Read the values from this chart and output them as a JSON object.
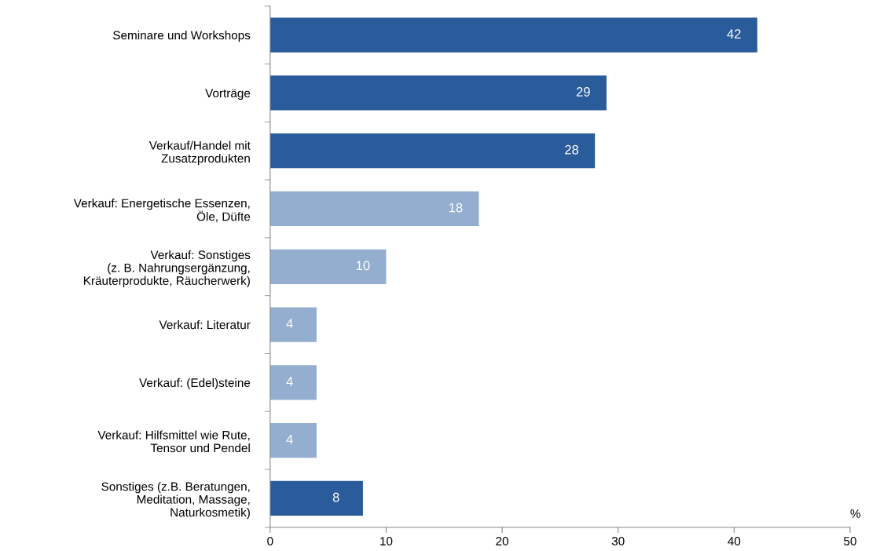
{
  "chart_data": {
    "type": "bar",
    "orientation": "horizontal",
    "categories": [
      "Seminare und Workshops",
      "Vorträge",
      "Verkauf/Handel mit\nZusatzprodukten",
      "Verkauf: Energetische Essenzen,\nÖle, Düfte",
      "Verkauf: Sonstiges\n(z. B. Nahrungsergänzung,\nKräuterprodukte, Räucherwerk)",
      "Verkauf: Literatur",
      "Verkauf: (Edel)steine",
      "Verkauf: Hilfsmittel wie Rute,\nTensor und Pendel",
      "Sonstiges (z.B. Beratungen,\nMeditation, Massage,\nNaturkosmetik)"
    ],
    "values": [
      42,
      29,
      28,
      18,
      10,
      4,
      4,
      4,
      8
    ],
    "colors": [
      "#2a5b9b",
      "#2a5b9b",
      "#2a5b9b",
      "#94aecf",
      "#94aecf",
      "#94aecf",
      "#94aecf",
      "#94aecf",
      "#2a5b9b"
    ],
    "xlabel": "%",
    "xlim": [
      0,
      50
    ],
    "xticks": [
      0,
      10,
      20,
      30,
      40,
      50
    ],
    "data_labels": true,
    "grid": false,
    "legend": false
  }
}
